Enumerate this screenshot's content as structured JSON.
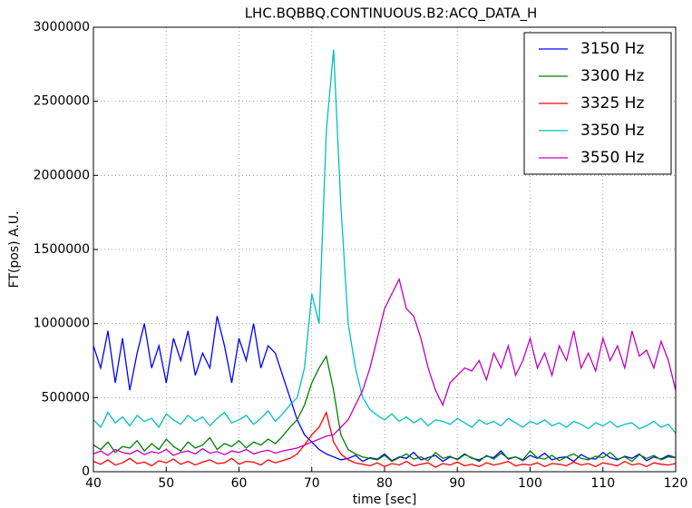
{
  "chart_data": {
    "type": "line",
    "title": "LHC.BQBBQ.CONTINUOUS.B2:ACQ_DATA_H",
    "x_label": "time [sec]",
    "y_label": "FT(pos) A.U.",
    "xlim": [
      40,
      120
    ],
    "xticks": [
      40,
      50,
      60,
      70,
      80,
      90,
      100,
      110,
      120
    ],
    "ylim": [
      0,
      3000000
    ],
    "yticks": [
      0,
      500000,
      1000000,
      1500000,
      2000000,
      2500000,
      3000000
    ],
    "grid": true,
    "legend": "upper right",
    "x": [
      40,
      41,
      42,
      43,
      44,
      45,
      46,
      47,
      48,
      49,
      50,
      51,
      52,
      53,
      54,
      55,
      56,
      57,
      58,
      59,
      60,
      61,
      62,
      63,
      64,
      65,
      66,
      67,
      68,
      69,
      70,
      71,
      72,
      73,
      74,
      75,
      76,
      77,
      78,
      79,
      80,
      81,
      82,
      83,
      84,
      85,
      86,
      87,
      88,
      89,
      90,
      91,
      92,
      93,
      94,
      95,
      96,
      97,
      98,
      99,
      100,
      101,
      102,
      103,
      104,
      105,
      106,
      107,
      108,
      109,
      110,
      111,
      112,
      113,
      114,
      115,
      116,
      117,
      118,
      119,
      120
    ],
    "series": [
      {
        "name": "3150 Hz",
        "color": "#0000ff",
        "values": [
          850000,
          700000,
          950000,
          600000,
          900000,
          550000,
          800000,
          1000000,
          700000,
          850000,
          600000,
          900000,
          750000,
          950000,
          650000,
          800000,
          700000,
          1050000,
          850000,
          600000,
          900000,
          750000,
          1000000,
          700000,
          850000,
          800000,
          650000,
          500000,
          350000,
          250000,
          200000,
          150000,
          120000,
          100000,
          80000,
          90000,
          110000,
          70000,
          95000,
          85000,
          120000,
          75000,
          100000,
          90000,
          130000,
          80000,
          95000,
          110000,
          70000,
          100000,
          85000,
          120000,
          90000,
          80000,
          105000,
          95000,
          140000,
          85000,
          100000,
          75000,
          110000,
          90000,
          125000,
          80000,
          95000,
          100000,
          70000,
          115000,
          90000,
          85000,
          130000,
          95000,
          80000,
          105000,
          90000,
          120000,
          75000,
          100000,
          85000,
          110000,
          95000
        ]
      },
      {
        "name": "3300 Hz",
        "color": "#008000",
        "values": [
          180000,
          150000,
          200000,
          130000,
          170000,
          160000,
          210000,
          140000,
          190000,
          150000,
          220000,
          170000,
          140000,
          200000,
          160000,
          180000,
          230000,
          150000,
          190000,
          170000,
          210000,
          160000,
          200000,
          180000,
          220000,
          190000,
          240000,
          300000,
          350000,
          450000,
          600000,
          700000,
          780000,
          550000,
          250000,
          150000,
          120000,
          100000,
          90000,
          80000,
          110000,
          70000,
          95000,
          120000,
          85000,
          100000,
          75000,
          130000,
          90000,
          105000,
          80000,
          115000,
          95000,
          70000,
          110000,
          85000,
          125000,
          90000,
          100000,
          80000,
          140000,
          95000,
          85000,
          110000,
          75000,
          100000,
          120000,
          90000,
          80000,
          105000,
          95000,
          130000,
          85000,
          100000,
          70000,
          115000,
          90000,
          110000,
          80000,
          100000,
          95000
        ]
      },
      {
        "name": "3325 Hz",
        "color": "#ff0000",
        "values": [
          70000,
          50000,
          80000,
          45000,
          60000,
          90000,
          55000,
          65000,
          40000,
          75000,
          60000,
          85000,
          50000,
          70000,
          45000,
          65000,
          80000,
          55000,
          60000,
          90000,
          50000,
          70000,
          65000,
          45000,
          80000,
          60000,
          75000,
          90000,
          120000,
          180000,
          250000,
          300000,
          400000,
          200000,
          120000,
          80000,
          60000,
          50000,
          40000,
          60000,
          35000,
          55000,
          45000,
          70000,
          40000,
          50000,
          60000,
          30000,
          55000,
          45000,
          65000,
          40000,
          50000,
          35000,
          60000,
          45000,
          55000,
          70000,
          40000,
          50000,
          45000,
          60000,
          35000,
          55000,
          50000,
          40000,
          65000,
          45000,
          55000,
          35000,
          60000,
          50000,
          40000,
          70000,
          45000,
          55000,
          35000,
          60000,
          50000,
          45000,
          55000
        ]
      },
      {
        "name": "3350 Hz",
        "color": "#00bfbf",
        "values": [
          350000,
          300000,
          400000,
          330000,
          370000,
          310000,
          380000,
          340000,
          360000,
          300000,
          390000,
          350000,
          320000,
          380000,
          340000,
          370000,
          310000,
          360000,
          400000,
          330000,
          350000,
          380000,
          320000,
          360000,
          410000,
          340000,
          390000,
          450000,
          500000,
          700000,
          1200000,
          1000000,
          2300000,
          2850000,
          1800000,
          1000000,
          700000,
          500000,
          420000,
          380000,
          350000,
          390000,
          340000,
          370000,
          330000,
          360000,
          310000,
          350000,
          340000,
          320000,
          360000,
          330000,
          300000,
          350000,
          320000,
          340000,
          310000,
          360000,
          330000,
          300000,
          340000,
          320000,
          350000,
          310000,
          330000,
          300000,
          340000,
          320000,
          290000,
          330000,
          310000,
          340000,
          300000,
          320000,
          330000,
          290000,
          310000,
          340000,
          300000,
          320000,
          260000
        ]
      },
      {
        "name": "3550 Hz",
        "color": "#bf00bf",
        "values": [
          120000,
          140000,
          110000,
          150000,
          130000,
          120000,
          145000,
          115000,
          135000,
          125000,
          150000,
          110000,
          130000,
          140000,
          120000,
          155000,
          125000,
          135000,
          115000,
          140000,
          130000,
          150000,
          120000,
          135000,
          145000,
          125000,
          140000,
          150000,
          160000,
          180000,
          200000,
          220000,
          240000,
          250000,
          300000,
          350000,
          450000,
          550000,
          700000,
          900000,
          1100000,
          1200000,
          1300000,
          1100000,
          1050000,
          900000,
          700000,
          550000,
          450000,
          600000,
          650000,
          700000,
          680000,
          750000,
          620000,
          800000,
          700000,
          850000,
          650000,
          750000,
          900000,
          700000,
          800000,
          650000,
          850000,
          750000,
          950000,
          700000,
          800000,
          680000,
          900000,
          750000,
          850000,
          700000,
          950000,
          780000,
          820000,
          700000,
          880000,
          750000,
          550000
        ]
      }
    ]
  }
}
